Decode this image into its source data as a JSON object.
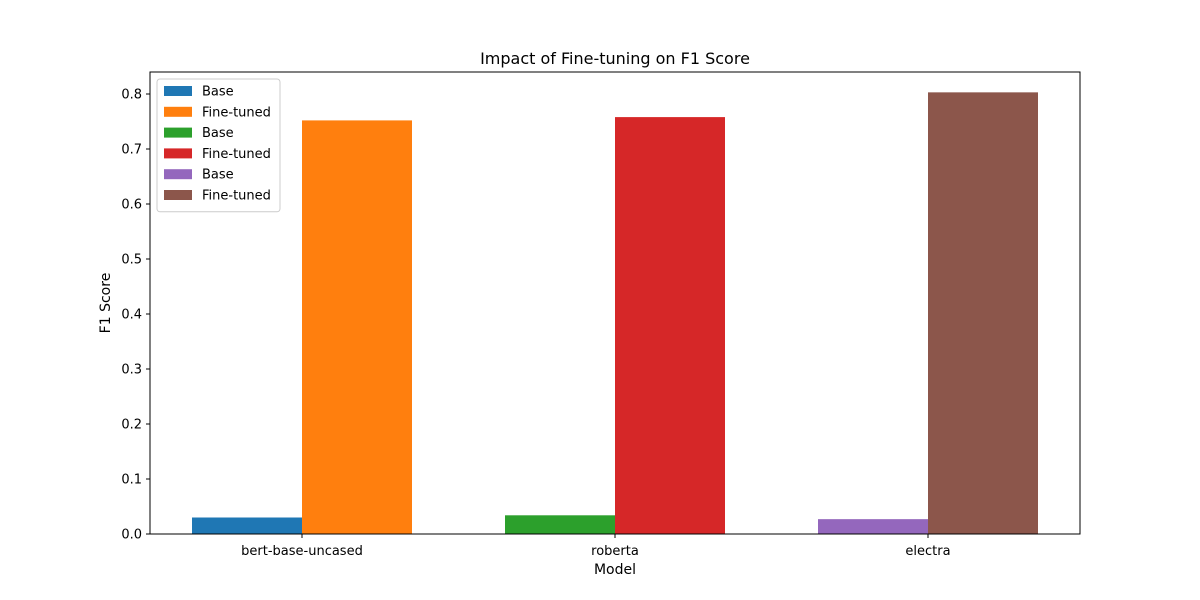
{
  "chart_data": {
    "type": "bar",
    "title": "Impact of Fine-tuning on F1 Score",
    "xlabel": "Model",
    "ylabel": "F1 Score",
    "ylim": [
      0,
      0.84
    ],
    "yticks": [
      "0.0",
      "0.1",
      "0.2",
      "0.3",
      "0.4",
      "0.5",
      "0.6",
      "0.7",
      "0.8"
    ],
    "categories": [
      "bert-base-uncased",
      "roberta",
      "electra"
    ],
    "grid": false,
    "legend_position": "top-left",
    "series": [
      {
        "name": "Base",
        "category": "bert-base-uncased",
        "slot": "left",
        "value": 0.03,
        "color": "#1f77b4"
      },
      {
        "name": "Fine-tuned",
        "category": "bert-base-uncased",
        "slot": "right",
        "value": 0.752,
        "color": "#ff7f0e"
      },
      {
        "name": "Base",
        "category": "roberta",
        "slot": "left",
        "value": 0.034,
        "color": "#2ca02c"
      },
      {
        "name": "Fine-tuned",
        "category": "roberta",
        "slot": "right",
        "value": 0.758,
        "color": "#d62728"
      },
      {
        "name": "Base",
        "category": "electra",
        "slot": "left",
        "value": 0.027,
        "color": "#9467bd"
      },
      {
        "name": "Fine-tuned",
        "category": "electra",
        "slot": "right",
        "value": 0.803,
        "color": "#8c564b"
      }
    ]
  }
}
